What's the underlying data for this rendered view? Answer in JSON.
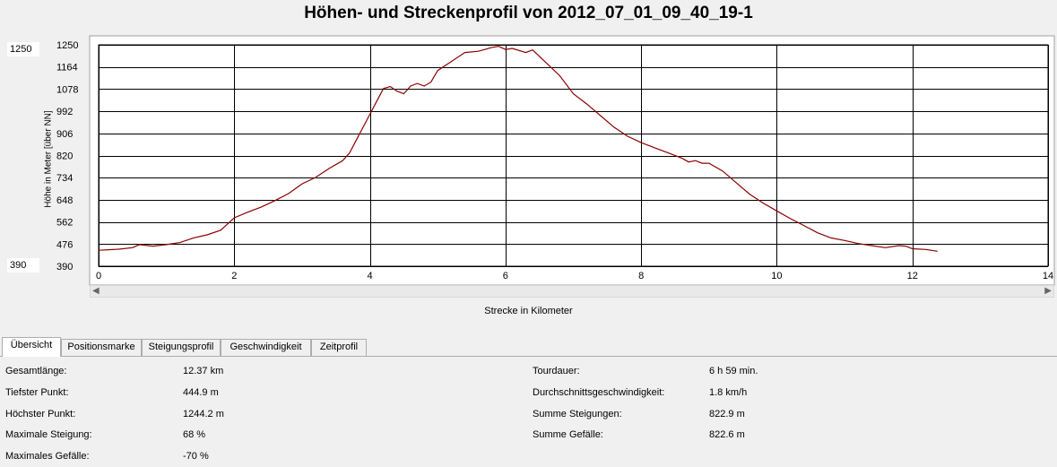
{
  "title": "Höhen- und Streckenprofil von 2012_07_01_09_40_19-1",
  "range": {
    "max": "1250",
    "min": "390"
  },
  "chart_data": {
    "type": "line",
    "xlabel": "Strecke in Kilometer",
    "ylabel": "Höhe in Meter [über NN]",
    "xlim": [
      0,
      14
    ],
    "ylim": [
      390,
      1250
    ],
    "x_ticks": [
      "0",
      "2",
      "4",
      "6",
      "8",
      "10",
      "12",
      "14"
    ],
    "y_ticks": [
      "1250",
      "1164",
      "1078",
      "992",
      "906",
      "820",
      "734",
      "648",
      "562",
      "476",
      "390"
    ],
    "grid": true,
    "line_color": "#8b0000",
    "series": [
      {
        "x": [
          0,
          0.3,
          0.5,
          0.6,
          0.8,
          1.0,
          1.2,
          1.4,
          1.6,
          1.8,
          2.0,
          2.2,
          2.4,
          2.6,
          2.8,
          3.0,
          3.2,
          3.4,
          3.6,
          3.7,
          3.8,
          3.9,
          4.0,
          4.1,
          4.2,
          4.3,
          4.4,
          4.5,
          4.6,
          4.7,
          4.8,
          4.9,
          5.0,
          5.2,
          5.4,
          5.6,
          5.8,
          5.9,
          6.0,
          6.1,
          6.3,
          6.4,
          6.6,
          6.8,
          7.0,
          7.2,
          7.4,
          7.6,
          7.8,
          8.0,
          8.2,
          8.4,
          8.6,
          8.7,
          8.8,
          8.9,
          9.0,
          9.2,
          9.4,
          9.6,
          9.8,
          10.0,
          10.2,
          10.4,
          10.6,
          10.8,
          11.0,
          11.2,
          11.4,
          11.6,
          11.8,
          11.9,
          12.0,
          12.2,
          12.37
        ],
        "y": [
          452,
          456,
          462,
          474,
          468,
          474,
          482,
          500,
          512,
          530,
          578,
          600,
          620,
          645,
          672,
          710,
          735,
          770,
          800,
          830,
          880,
          930,
          980,
          1030,
          1080,
          1088,
          1070,
          1060,
          1090,
          1100,
          1090,
          1105,
          1150,
          1185,
          1220,
          1225,
          1240,
          1244,
          1232,
          1236,
          1220,
          1230,
          1180,
          1130,
          1060,
          1020,
          975,
          930,
          895,
          870,
          850,
          830,
          810,
          795,
          800,
          790,
          790,
          760,
          715,
          670,
          635,
          605,
          575,
          548,
          520,
          500,
          490,
          478,
          470,
          462,
          470,
          468,
          458,
          455,
          448
        ]
      }
    ]
  },
  "tabs": [
    {
      "label": "Übersicht",
      "active": true
    },
    {
      "label": "Positionsmarke",
      "active": false
    },
    {
      "label": "Steigungsprofil",
      "active": false
    },
    {
      "label": "Geschwindigkeit",
      "active": false
    },
    {
      "label": "Zeitprofil",
      "active": false
    }
  ],
  "stats": {
    "left": [
      {
        "label": "Gesamtlänge:",
        "value": "12.37 km"
      },
      {
        "label": "Tiefster Punkt:",
        "value": "444.9 m"
      },
      {
        "label": "Höchster Punkt:",
        "value": "1244.2 m"
      },
      {
        "label": "Maximale Steigung:",
        "value": "68 %"
      },
      {
        "label": "Maximales Gefälle:",
        "value": "-70 %"
      }
    ],
    "right": [
      {
        "label": "Tourdauer:",
        "value": "6 h 59 min."
      },
      {
        "label": "Durchschnittsgeschwindigkeit:",
        "value": "1.8 km/h"
      },
      {
        "label": "Summe Steigungen:",
        "value": "822.9 m"
      },
      {
        "label": "Summe Gefälle:",
        "value": "822.6 m"
      }
    ]
  }
}
